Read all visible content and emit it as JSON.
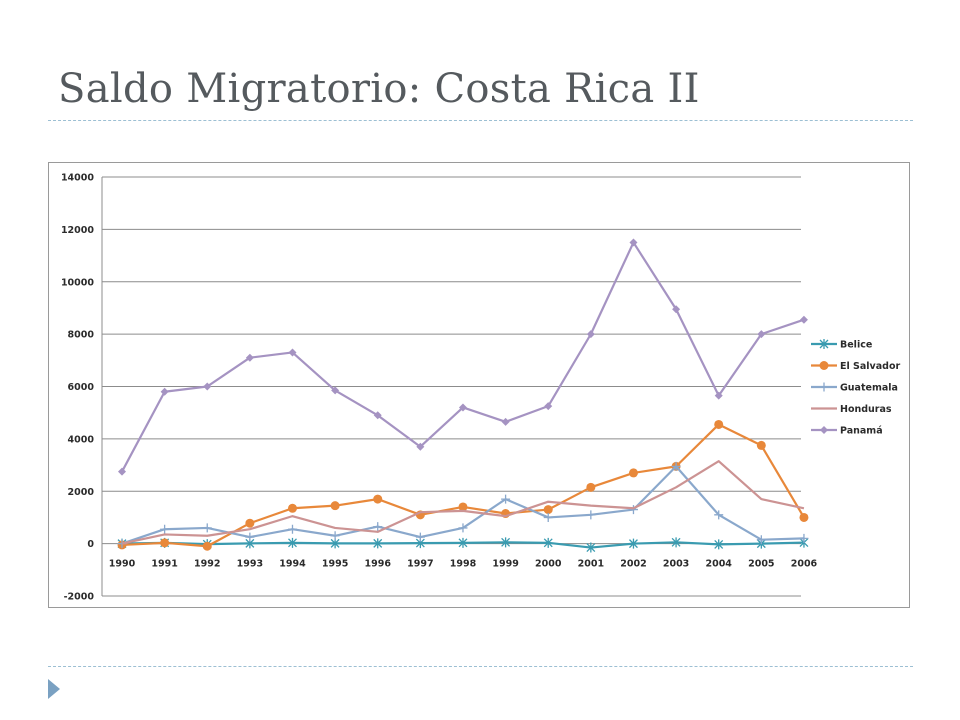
{
  "slide": {
    "title": "Saldo Migratorio: Costa Rica II"
  },
  "chart_data": {
    "type": "line",
    "title": "",
    "xlabel": "",
    "ylabel": "",
    "categories": [
      "1990",
      "1991",
      "1992",
      "1993",
      "1994",
      "1995",
      "1996",
      "1997",
      "1998",
      "1999",
      "2000",
      "2001",
      "2002",
      "2003",
      "2004",
      "2005",
      "2006"
    ],
    "ylim": [
      -2000,
      14000
    ],
    "yticks": [
      -2000,
      0,
      2000,
      4000,
      6000,
      8000,
      10000,
      12000,
      14000
    ],
    "grid": true,
    "legend_position": "right",
    "series": [
      {
        "name": "Belice",
        "color": "#3a9bb0",
        "marker": "star",
        "values": [
          0,
          30,
          -20,
          10,
          30,
          10,
          10,
          20,
          30,
          50,
          30,
          -150,
          0,
          50,
          -30,
          0,
          40
        ]
      },
      {
        "name": "El Salvador",
        "color": "#e8883a",
        "marker": "circle",
        "values": [
          -50,
          30,
          -100,
          780,
          1350,
          1450,
          1700,
          1100,
          1400,
          1150,
          1300,
          2150,
          2700,
          2950,
          4550,
          3750,
          1000
        ]
      },
      {
        "name": "Guatemala",
        "color": "#8aa8cc",
        "marker": "plus",
        "values": [
          0,
          550,
          600,
          250,
          550,
          300,
          650,
          250,
          600,
          1700,
          1000,
          1100,
          1300,
          2950,
          1100,
          150,
          200
        ]
      },
      {
        "name": "Honduras",
        "color": "#cc9393",
        "marker": "none",
        "values": [
          0,
          350,
          300,
          550,
          1050,
          600,
          450,
          1200,
          1250,
          1050,
          1600,
          1450,
          1350,
          2150,
          3150,
          1700,
          1350
        ]
      },
      {
        "name": "Panamá",
        "color": "#a593c2",
        "marker": "diamond",
        "values": [
          2750,
          5800,
          6000,
          7100,
          7300,
          5850,
          4900,
          3700,
          5200,
          4650,
          5250,
          8000,
          11500,
          8950,
          5650,
          8000,
          8550
        ]
      }
    ]
  }
}
